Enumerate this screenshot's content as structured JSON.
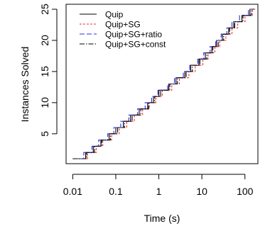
{
  "chart_data": {
    "type": "line",
    "xlabel": "Time (s)",
    "ylabel": "Instances Solved",
    "x_scale": "log",
    "xlim": [
      0.007,
      200
    ],
    "ylim": [
      0.2,
      25.8
    ],
    "x_ticks": [
      0.01,
      0.1,
      1,
      10,
      100
    ],
    "x_tick_labels": [
      "0.01",
      "0.1",
      "1",
      "10",
      "100"
    ],
    "y_ticks": [
      5,
      10,
      15,
      20,
      25
    ],
    "y_tick_labels": [
      "5",
      "10",
      "15",
      "20",
      "25"
    ],
    "grid": false,
    "legend_position": "top-left",
    "series": [
      {
        "name": "Quip",
        "color": "#000000",
        "dash": "none",
        "x": [
          0.01,
          0.02,
          0.03,
          0.045,
          0.07,
          0.1,
          0.15,
          0.22,
          0.35,
          0.55,
          0.75,
          1.0,
          1.7,
          2.5,
          4.0,
          5.5,
          8.5,
          12,
          17,
          22,
          30,
          42,
          55,
          85,
          130
        ],
        "y": [
          1,
          2,
          3,
          4,
          5,
          6,
          7,
          8,
          9,
          10,
          11,
          12,
          13,
          14,
          15,
          16,
          17,
          18,
          19,
          20,
          21,
          22,
          23,
          24,
          25
        ]
      },
      {
        "name": "Quip+SG",
        "color": "#e8302b",
        "dash": "3,2",
        "x": [
          0.01,
          0.022,
          0.035,
          0.05,
          0.08,
          0.12,
          0.18,
          0.27,
          0.42,
          0.6,
          0.85,
          1.2,
          2.0,
          3.0,
          5.0,
          7.0,
          10.5,
          14,
          20,
          26,
          36,
          50,
          68,
          100,
          150
        ],
        "y": [
          1,
          2,
          3,
          4,
          5,
          6,
          7,
          8,
          9,
          10,
          11,
          12,
          13,
          14,
          15,
          16,
          17,
          18,
          19,
          20,
          21,
          22,
          23,
          24,
          25
        ]
      },
      {
        "name": "Quip+SG+ratio",
        "color": "#2b2be8",
        "dash": "7,3",
        "x": [
          0.01,
          0.018,
          0.028,
          0.04,
          0.065,
          0.09,
          0.13,
          0.2,
          0.32,
          0.48,
          0.68,
          0.95,
          1.6,
          2.3,
          3.7,
          5.2,
          8.0,
          11,
          15.5,
          21,
          28,
          38,
          50,
          75,
          120
        ],
        "y": [
          1,
          2,
          3,
          4,
          5,
          6,
          7,
          8,
          9,
          10,
          11,
          12,
          13,
          14,
          15,
          16,
          17,
          18,
          19,
          20,
          21,
          22,
          23,
          24,
          25
        ]
      },
      {
        "name": "Quip+SG+const",
        "color": "#000000",
        "dash": "7,2,1.5,2",
        "x": [
          0.01,
          0.021,
          0.032,
          0.047,
          0.075,
          0.11,
          0.16,
          0.24,
          0.38,
          0.58,
          0.8,
          1.1,
          1.8,
          2.7,
          4.3,
          6.0,
          9.0,
          13,
          18,
          24,
          32,
          44,
          58,
          90,
          140
        ],
        "y": [
          1,
          2,
          3,
          4,
          5,
          6,
          7,
          8,
          9,
          10,
          11,
          12,
          13,
          14,
          15,
          16,
          17,
          18,
          19,
          20,
          21,
          22,
          23,
          24,
          25
        ]
      }
    ]
  }
}
